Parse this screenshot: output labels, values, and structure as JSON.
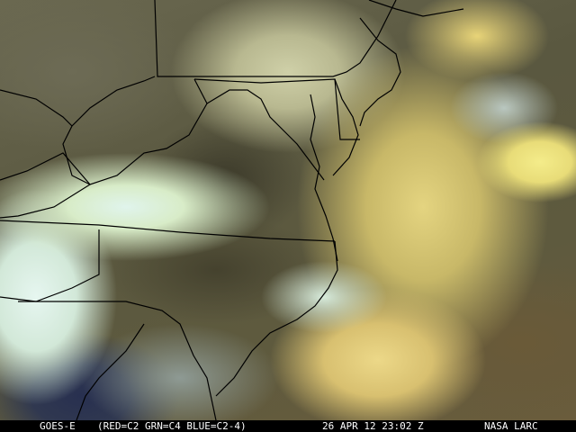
{
  "image": {
    "satellite": "GOES-E",
    "channels": "(RED=C2 GRN=C4 BLUE=C2-4)",
    "datetime": "26 APR 12 23:02 Z",
    "credit": "NASA LARC"
  },
  "colors": {
    "land_base": "#5b5a40",
    "yellow_cloud": "#e8dc78",
    "white_cloud": "#e0f4ec",
    "boundary_lines": "#000000",
    "caption_background": "#000000",
    "caption_text": "#ffffff"
  }
}
